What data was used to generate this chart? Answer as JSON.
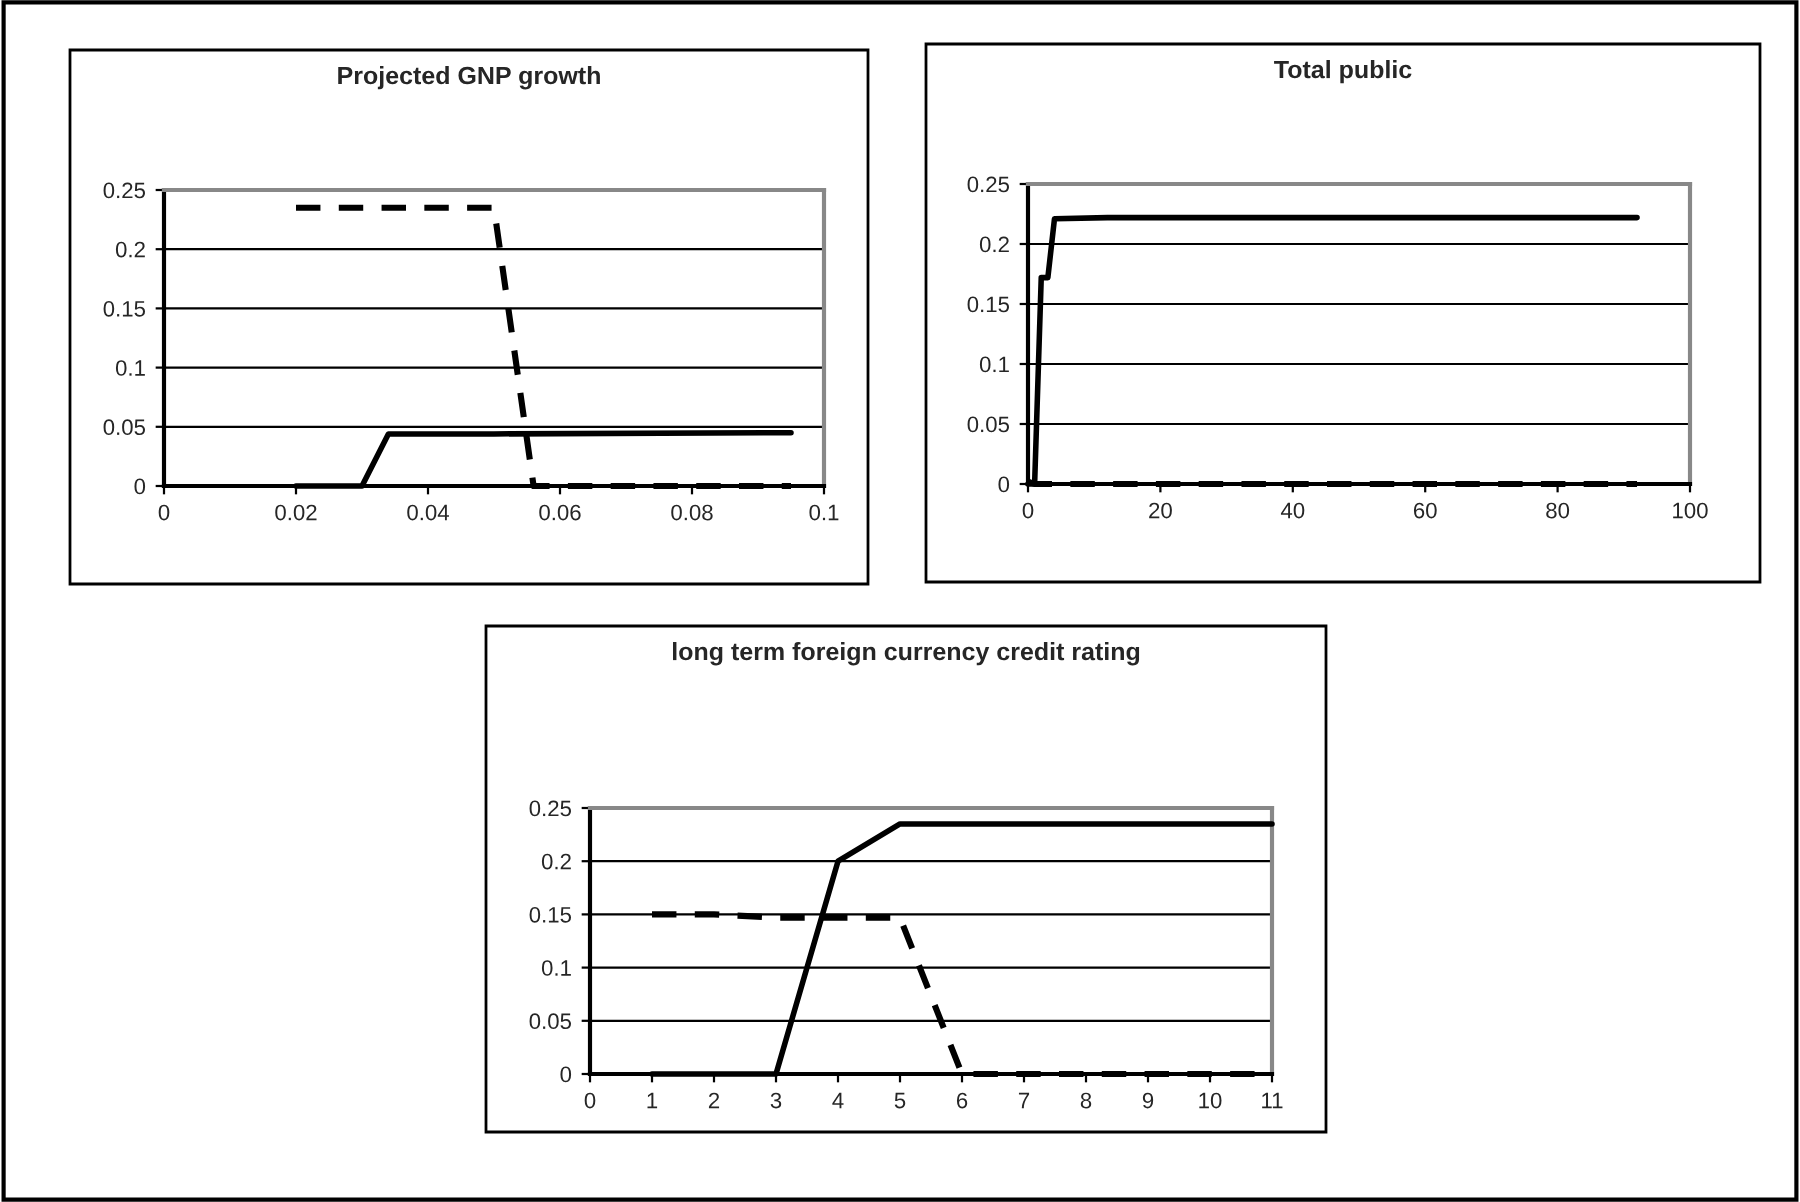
{
  "chart_data": [
    {
      "type": "line",
      "title": "Projected GNP growth",
      "xlim": [
        0,
        0.1
      ],
      "xticks": [
        0,
        0.02,
        0.04,
        0.06,
        0.08,
        0.1
      ],
      "ylim": [
        0,
        0.25
      ],
      "yticks": [
        0,
        0.05,
        0.1,
        0.15,
        0.2,
        0.25
      ],
      "grid": "y",
      "legend": false,
      "series": [
        {
          "color": "#000000",
          "line_style": "solid",
          "x": [
            0.02,
            0.03,
            0.034,
            0.05,
            0.095
          ],
          "values": [
            0,
            0,
            0.044,
            0.044,
            0.045
          ]
        },
        {
          "color": "#000000",
          "line_style": "dashed",
          "x": [
            0.02,
            0.05,
            0.056,
            0.095
          ],
          "values": [
            0.235,
            0.235,
            0,
            0
          ]
        }
      ]
    },
    {
      "type": "line",
      "title": "Total public",
      "xlim": [
        0,
        100
      ],
      "xticks": [
        0,
        20,
        40,
        60,
        80,
        100
      ],
      "ylim": [
        0,
        0.25
      ],
      "yticks": [
        0,
        0.05,
        0.1,
        0.15,
        0.2,
        0.25
      ],
      "grid": "y",
      "legend": false,
      "series": [
        {
          "color": "#000000",
          "line_style": "solid",
          "x": [
            0,
            1,
            2,
            3,
            4,
            12,
            92
          ],
          "values": [
            0,
            0,
            0.172,
            0.172,
            0.221,
            0.222,
            0.222
          ]
        },
        {
          "color": "#000000",
          "line_style": "dashed",
          "x": [
            0,
            1,
            92
          ],
          "values": [
            0.002,
            0,
            0
          ]
        }
      ]
    },
    {
      "type": "line",
      "title": "long term foreign currency credit rating",
      "xlim": [
        0,
        11
      ],
      "xticks": [
        0,
        1,
        2,
        3,
        4,
        5,
        6,
        7,
        8,
        9,
        10,
        11
      ],
      "ylim": [
        0,
        0.25
      ],
      "yticks": [
        0,
        0.05,
        0.1,
        0.15,
        0.2,
        0.25
      ],
      "grid": "y",
      "legend": false,
      "series": [
        {
          "color": "#000000",
          "line_style": "solid",
          "x": [
            1,
            2,
            3,
            4,
            5,
            6,
            7,
            8,
            9,
            10,
            11
          ],
          "values": [
            0,
            0,
            0,
            0.2,
            0.235,
            0.235,
            0.235,
            0.235,
            0.235,
            0.235,
            0.235
          ]
        },
        {
          "color": "#000000",
          "line_style": "dashed",
          "x": [
            1,
            2,
            3,
            4,
            5,
            6,
            7,
            8,
            9,
            10,
            11
          ],
          "values": [
            0.15,
            0.15,
            0.147,
            0.147,
            0.147,
            0,
            0,
            0,
            0,
            0,
            0
          ]
        }
      ]
    }
  ]
}
